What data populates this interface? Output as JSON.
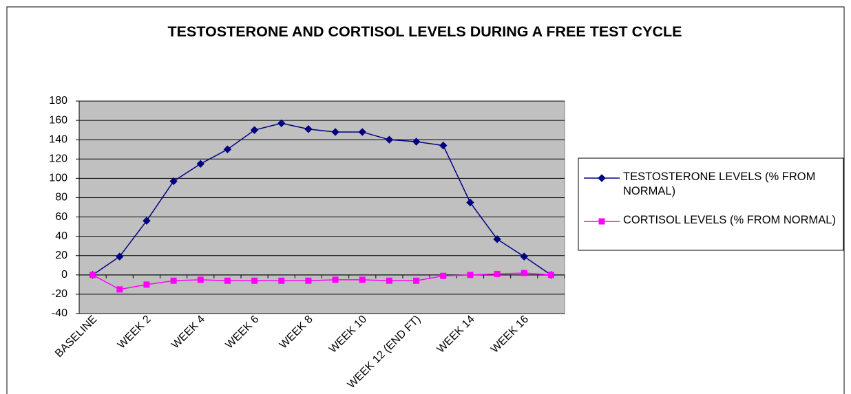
{
  "chart_data": {
    "type": "line",
    "title": "TESTOSTERONE AND CORTISOL LEVELS DURING A FREE TEST CYCLE",
    "categories": [
      "BASELINE",
      null,
      "WEEK 2",
      null,
      "WEEK 4",
      null,
      "WEEK 6",
      null,
      "WEEK 8",
      null,
      "WEEK 10",
      null,
      "WEEK 12 (END FT)",
      null,
      "WEEK 14",
      null,
      "WEEK 16",
      null
    ],
    "series": [
      {
        "name": "TESTOSTERONE LEVELS (% FROM NORMAL)",
        "color": "#000080",
        "marker": "diamond",
        "values": [
          0,
          19,
          56,
          97,
          115,
          130,
          150,
          157,
          151,
          148,
          148,
          140,
          138,
          134,
          75,
          37,
          19,
          0
        ]
      },
      {
        "name": "CORTISOL LEVELS (% FROM NORMAL)",
        "color": "#ff00ff",
        "marker": "square",
        "values": [
          0,
          -15,
          -10,
          -6,
          -5,
          -6,
          -6,
          -6,
          -6,
          -5,
          -5,
          -6,
          -6,
          -1,
          0,
          1,
          2,
          0
        ]
      }
    ],
    "ylim": [
      -40,
      180
    ],
    "yticks": [
      -40,
      -20,
      0,
      20,
      40,
      60,
      80,
      100,
      120,
      140,
      160,
      180
    ],
    "grid": true,
    "legend": "right",
    "plot_background": "#c0c0c0"
  }
}
